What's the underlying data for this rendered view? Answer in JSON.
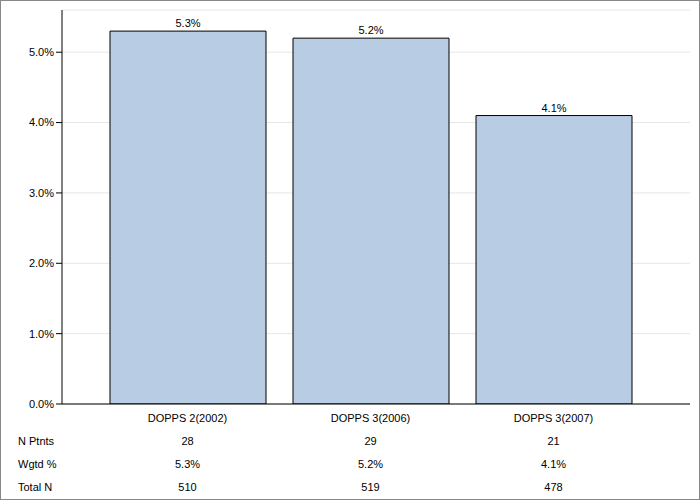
{
  "chart_data": {
    "type": "bar",
    "categories": [
      "DOPPS 2(2002)",
      "DOPPS 3(2006)",
      "DOPPS 3(2007)"
    ],
    "values": [
      5.3,
      5.2,
      4.1
    ],
    "value_labels": [
      "5.3%",
      "5.2%",
      "4.1%"
    ],
    "data_labels": true,
    "color": "#b8cce4",
    "ylim": [
      0,
      5.6
    ],
    "yticks": [
      {
        "value": 0,
        "label": "0.0%"
      },
      {
        "value": 1,
        "label": "1.0%"
      },
      {
        "value": 2,
        "label": "2.0%"
      },
      {
        "value": 3,
        "label": "3.0%"
      },
      {
        "value": 4,
        "label": "4.0%"
      },
      {
        "value": 5,
        "label": "5.0%"
      }
    ],
    "grid": true
  },
  "table": {
    "rows": [
      {
        "label": "N Ptnts",
        "cells": [
          "28",
          "29",
          "21"
        ]
      },
      {
        "label": "Wgtd %",
        "cells": [
          "5.3%",
          "5.2%",
          "4.1%"
        ]
      },
      {
        "label": "Total N",
        "cells": [
          "510",
          "519",
          "478"
        ]
      }
    ]
  }
}
